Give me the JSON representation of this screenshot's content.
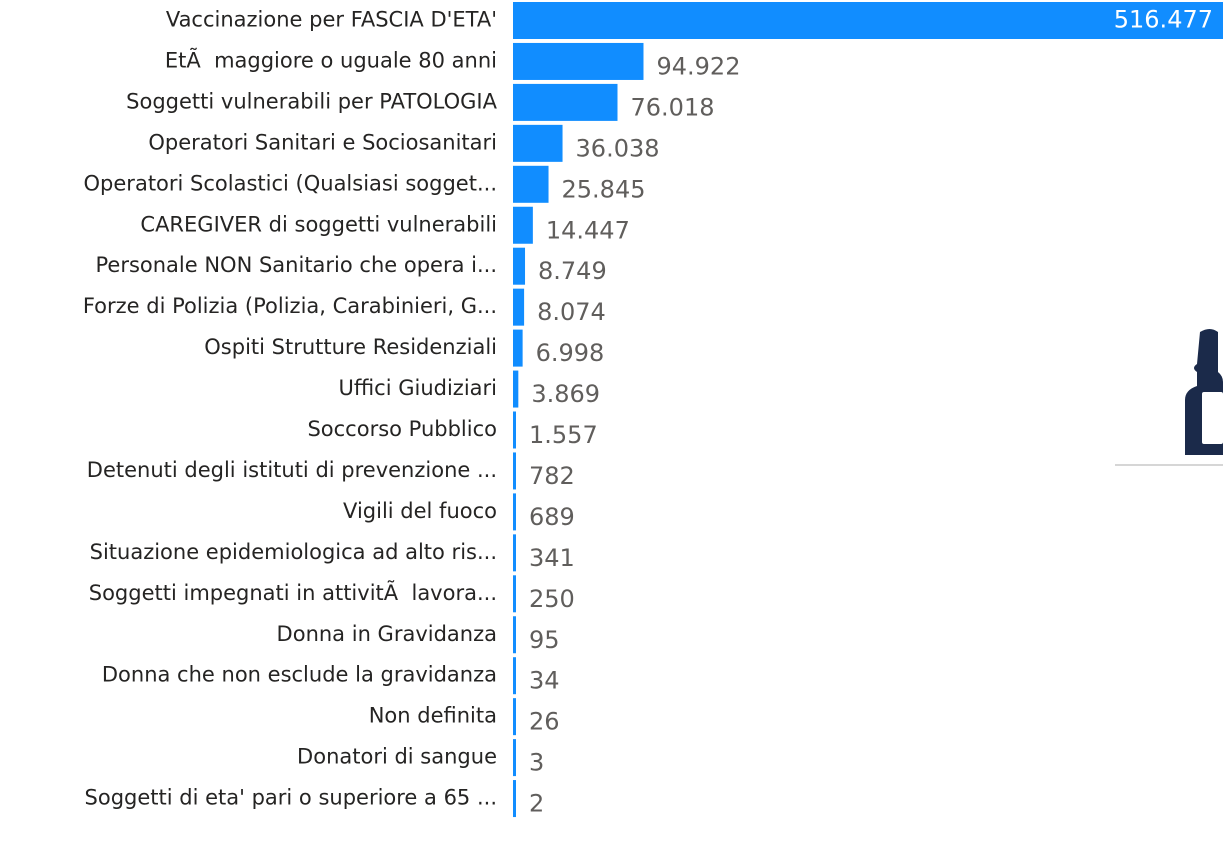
{
  "chart_data": {
    "type": "hbar",
    "color": "#118DFF",
    "categories": [
      "Vaccinazione per FASCIA D'ETA'",
      "EtÃ  maggiore o uguale 80 anni",
      "Soggetti vulnerabili per PATOLOGIA",
      "Operatori Sanitari e Sociosanitari",
      "Operatori Scolastici (Qualsiasi sogget...",
      "CAREGIVER di soggetti vulnerabili",
      "Personale NON Sanitario che opera i...",
      "Forze di Polizia (Polizia, Carabinieri, G...",
      "Ospiti Strutture Residenziali",
      "Uffici Giudiziari",
      "Soccorso Pubblico",
      "Detenuti degli istituti di prevenzione ...",
      "Vigili del fuoco",
      "Situazione epidemiologica ad alto ris...",
      "Soggetti impegnati in attivitÃ  lavora...",
      "Donna in Gravidanza",
      "Donna che non esclude la gravidanza",
      "Non definita",
      "Donatori di sangue",
      "Soggetti di eta' pari o superiore a 65 ..."
    ],
    "values": [
      516477,
      94922,
      76018,
      36038,
      25845,
      14447,
      8749,
      8074,
      6998,
      3869,
      1557,
      782,
      689,
      341,
      250,
      95,
      34,
      26,
      3,
      2
    ],
    "value_labels": [
      "516.477",
      "94.922",
      "76.018",
      "36.038",
      "25.845",
      "14.447",
      "8.749",
      "8.074",
      "6.998",
      "3.869",
      "1.557",
      "782",
      "689",
      "341",
      "250",
      "95",
      "34",
      "26",
      "3",
      "2"
    ]
  }
}
